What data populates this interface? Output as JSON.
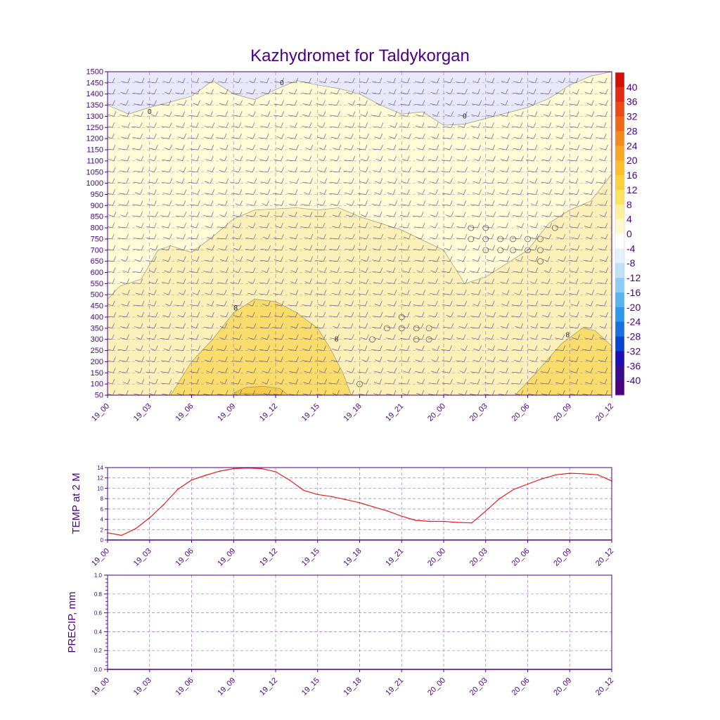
{
  "title": "Kazhydromet for Taldykorgan",
  "colors": {
    "text": "#4B0082",
    "frame": "#4B0082",
    "temp_line": "#E0201B",
    "zero_line": "#4B0082",
    "grid": "#9B7BC0"
  },
  "chart_data": [
    {
      "type": "heatmap",
      "name": "cross-section",
      "title": "Kazhydromet for Taldykorgan",
      "time_labels": [
        "19_00",
        "19_03",
        "19_06",
        "19_09",
        "19_12",
        "19_15",
        "19_18",
        "19_21",
        "20_00",
        "20_03",
        "20_06",
        "20_09",
        "20_12"
      ],
      "pressure_levels": [
        50,
        100,
        150,
        200,
        250,
        300,
        350,
        400,
        450,
        500,
        550,
        600,
        650,
        700,
        750,
        800,
        850,
        900,
        950,
        1000,
        1050,
        1100,
        1150,
        1200,
        1250,
        1300,
        1350,
        1400,
        1450,
        1500
      ],
      "ylim": [
        50,
        1500
      ],
      "contour_labels": [
        "0",
        "0",
        "0",
        "8",
        "8",
        "8"
      ],
      "contours": [
        {
          "name": "zero-isoline-boundary",
          "level": 0,
          "fill_above": "#E8E8F8",
          "points": [
            [
              0,
              1350
            ],
            [
              0.5,
              1310
            ],
            [
              1,
              1340
            ],
            [
              2,
              1390
            ],
            [
              2.5,
              1460
            ],
            [
              3,
              1400
            ],
            [
              3.5,
              1375
            ],
            [
              4,
              1420
            ],
            [
              4.5,
              1460
            ],
            [
              5,
              1440
            ],
            [
              5.5,
              1425
            ],
            [
              6,
              1400
            ],
            [
              6.5,
              1350
            ],
            [
              7,
              1310
            ],
            [
              7.5,
              1320
            ],
            [
              8,
              1260
            ],
            [
              8.5,
              1265
            ],
            [
              9,
              1290
            ],
            [
              10,
              1340
            ],
            [
              10.5,
              1380
            ],
            [
              11,
              1440
            ],
            [
              11.5,
              1480
            ],
            [
              12,
              1500
            ]
          ]
        },
        {
          "name": "four-isoline-boundary",
          "level": 4,
          "fill_below": "#FBF1B8",
          "points": [
            [
              0,
              50
            ],
            [
              0,
              480
            ],
            [
              0.3,
              540
            ],
            [
              0.8,
              570
            ],
            [
              1.2,
              700
            ],
            [
              1.5,
              720
            ],
            [
              2,
              690
            ],
            [
              2.5,
              760
            ],
            [
              3,
              840
            ],
            [
              3.5,
              880
            ],
            [
              4.5,
              890
            ],
            [
              5,
              880
            ],
            [
              5.5,
              890
            ],
            [
              6,
              850
            ],
            [
              7,
              790
            ],
            [
              8,
              700
            ],
            [
              8.5,
              550
            ],
            [
              9,
              580
            ],
            [
              10,
              700
            ],
            [
              10.5,
              820
            ],
            [
              11,
              880
            ],
            [
              11.5,
              920
            ],
            [
              12,
              1040
            ],
            [
              12,
              50
            ]
          ]
        },
        {
          "name": "eight-isoline-area",
          "level": 8,
          "fill": "#F8DD6A",
          "points": [
            [
              1.5,
              50
            ],
            [
              2,
              200
            ],
            [
              2.5,
              300
            ],
            [
              3,
              420
            ],
            [
              3.5,
              480
            ],
            [
              4,
              470
            ],
            [
              4.5,
              420
            ],
            [
              5,
              350
            ],
            [
              5.3,
              260
            ],
            [
              5.6,
              150
            ],
            [
              5.8,
              50
            ]
          ]
        },
        {
          "name": "eight-isoline-area-right",
          "level": 8,
          "fill": "#F8DD6A",
          "points": [
            [
              9.7,
              50
            ],
            [
              10.2,
              150
            ],
            [
              10.8,
              280
            ],
            [
              11.3,
              350
            ],
            [
              11.6,
              340
            ],
            [
              12,
              270
            ],
            [
              12,
              50
            ]
          ]
        },
        {
          "name": "twelve-isoline-area",
          "level": 12,
          "fill": "#F6CB4A",
          "points": [
            [
              3,
              60
            ],
            [
              3.3,
              85
            ],
            [
              3.7,
              90
            ],
            [
              4.1,
              80
            ],
            [
              4.3,
              50
            ]
          ]
        }
      ]
    },
    {
      "type": "colorbar",
      "name": "temperature-colorbar",
      "labels": [
        "40",
        "36",
        "32",
        "28",
        "24",
        "20",
        "16",
        "12",
        "8",
        "4",
        "0",
        "-4",
        "-8",
        "-12",
        "-16",
        "-20",
        "-24",
        "-28",
        "-32",
        "-36",
        "-40"
      ],
      "colors": [
        "#D01008",
        "#E32A12",
        "#EA4A14",
        "#EE6A18",
        "#F28A1E",
        "#F5A625",
        "#F8BE2E",
        "#F9D23E",
        "#FBE35E",
        "#FDF09A",
        "#FEF8CC",
        "#FFFFFF",
        "#E4F0FA",
        "#BEE1F7",
        "#8ECDF3",
        "#5BB3EE",
        "#2F97E7",
        "#1A70DE",
        "#0A44CF",
        "#1A10B4",
        "#3A0C8C",
        "#4B0082"
      ]
    },
    {
      "type": "line",
      "name": "temp-2m",
      "ylabel": "TEMP at 2 M",
      "ylim": [
        0,
        14
      ],
      "yticks": [
        "0",
        "2",
        "4",
        "6",
        "8",
        "10",
        "12",
        "14"
      ],
      "time_labels": [
        "19_00",
        "19_03",
        "19_06",
        "19_09",
        "19_12",
        "19_15",
        "19_18",
        "19_21",
        "20_00",
        "20_03",
        "20_06",
        "20_09",
        "20_12"
      ],
      "x": [
        0,
        0.33,
        0.67,
        1,
        1.33,
        1.67,
        2,
        2.33,
        2.67,
        3,
        3.33,
        3.67,
        4,
        4.33,
        4.67,
        5,
        5.33,
        5.67,
        6,
        6.33,
        6.67,
        7,
        7.33,
        7.67,
        8,
        8.33,
        8.67,
        9,
        9.33,
        9.67,
        10,
        10.33,
        10.67,
        11,
        11.33,
        11.67,
        12
      ],
      "values": [
        1.4,
        0.9,
        2.2,
        4.3,
        6.8,
        9.8,
        11.6,
        12.5,
        13.3,
        13.8,
        13.9,
        13.8,
        13.2,
        11.6,
        9.6,
        8.8,
        8.4,
        7.8,
        7.2,
        6.4,
        5.6,
        4.6,
        3.8,
        3.6,
        3.6,
        3.4,
        3.3,
        5.6,
        8.0,
        9.8,
        10.8,
        11.8,
        12.6,
        12.9,
        12.8,
        12.6,
        11.4
      ]
    },
    {
      "type": "line",
      "name": "precip",
      "ylabel": "PRECIP, mm",
      "ylim": [
        0,
        1
      ],
      "yticks": [
        "0.0",
        "0.2",
        "0.4",
        "0.6",
        "0.8",
        "1.0"
      ],
      "time_labels": [
        "19_00",
        "19_03",
        "19_06",
        "19_09",
        "19_12",
        "19_15",
        "19_18",
        "19_21",
        "20_00",
        "20_03",
        "20_06",
        "20_09",
        "20_12"
      ],
      "values": [
        0,
        0,
        0,
        0,
        0,
        0,
        0,
        0,
        0,
        0,
        0,
        0,
        0
      ]
    }
  ]
}
